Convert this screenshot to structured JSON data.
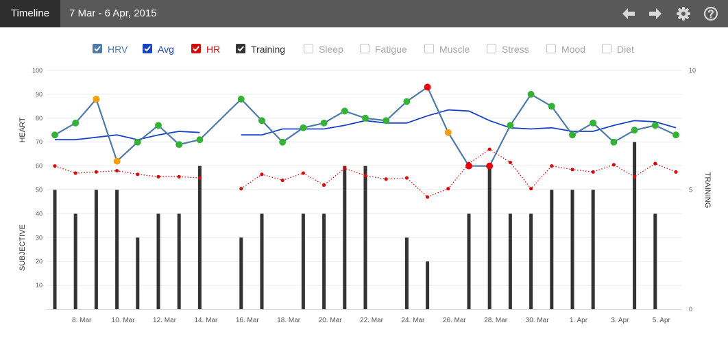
{
  "header": {
    "title": "Timeline",
    "date_range": "7 Mar - 6 Apr, 2015"
  },
  "toolbar": {
    "icons": [
      "arrow-left-icon",
      "arrow-right-icon",
      "gear-icon",
      "help-icon"
    ]
  },
  "legend": [
    {
      "label": "HRV",
      "checked": true,
      "color": "#4e7aa8"
    },
    {
      "label": "Avg",
      "checked": true,
      "color": "#1842c4"
    },
    {
      "label": "HR",
      "checked": true,
      "color": "#d40c0c"
    },
    {
      "label": "Training",
      "checked": true,
      "color": "#333333"
    },
    {
      "label": "Sleep",
      "checked": false,
      "color": "#a6a6a6"
    },
    {
      "label": "Fatigue",
      "checked": false,
      "color": "#a6a6a6"
    },
    {
      "label": "Muscle",
      "checked": false,
      "color": "#a6a6a6"
    },
    {
      "label": "Stress",
      "checked": false,
      "color": "#a6a6a6"
    },
    {
      "label": "Mood",
      "checked": false,
      "color": "#a6a6a6"
    },
    {
      "label": "Diet",
      "checked": false,
      "color": "#a6a6a6"
    }
  ],
  "chart_data": {
    "type": "line",
    "days": [
      "7 Mar",
      "8 Mar",
      "9 Mar",
      "10 Mar",
      "11 Mar",
      "12 Mar",
      "13 Mar",
      "14 Mar",
      "15 Mar",
      "16 Mar",
      "17 Mar",
      "18 Mar",
      "19 Mar",
      "20 Mar",
      "21 Mar",
      "22 Mar",
      "23 Mar",
      "24 Mar",
      "25 Mar",
      "26 Mar",
      "27 Mar",
      "28 Mar",
      "29 Mar",
      "30 Mar",
      "31 Mar",
      "1 Apr",
      "2 Apr",
      "3 Apr",
      "4 Apr",
      "5 Apr",
      "6 Apr"
    ],
    "x_tick_labels": [
      "8. Mar",
      "10. Mar",
      "12. Mar",
      "14. Mar",
      "16. Mar",
      "18. Mar",
      "20. Mar",
      "22. Mar",
      "24. Mar",
      "26. Mar",
      "28. Mar",
      "30. Mar",
      "1. Apr",
      "3. Apr",
      "5. Apr"
    ],
    "left_axis": {
      "ylim": [
        0,
        100
      ],
      "ticks": [
        "10",
        "20",
        "30",
        "40",
        "50",
        "60",
        "70",
        "80",
        "90",
        "100"
      ],
      "label_top": "HEART",
      "label_bottom": "SUBJECTIVE"
    },
    "right_axis": {
      "ylim": [
        0,
        10
      ],
      "ticks": [
        "0",
        "5",
        "10"
      ],
      "label": "TRAINING"
    },
    "grid": true,
    "series": [
      {
        "name": "HRV",
        "type": "line",
        "color": "#4e7aa8",
        "values": [
          73,
          78,
          88,
          62,
          70,
          77,
          69,
          71,
          null,
          88,
          79,
          70,
          76,
          78,
          83,
          80,
          79,
          87,
          93,
          74,
          60,
          60,
          77,
          90,
          85,
          73,
          78,
          70,
          75,
          77,
          73
        ],
        "point_colors": [
          "#36b336",
          "#36b336",
          "#f5a010",
          "#f5a010",
          "#36b336",
          "#36b336",
          "#36b336",
          "#36b336",
          null,
          "#36b336",
          "#36b336",
          "#36b336",
          "#36b336",
          "#36b336",
          "#36b336",
          "#36b336",
          "#36b336",
          "#36b336",
          "#e8000b",
          "#f5a010",
          "#e8000b",
          "#e8000b",
          "#36b336",
          "#36b336",
          "#36b336",
          "#36b336",
          "#36b336",
          "#36b336",
          "#36b336",
          "#36b336",
          "#36b336"
        ]
      },
      {
        "name": "Avg",
        "type": "line",
        "color": "#1842c4",
        "values": [
          71,
          71,
          72,
          73,
          71,
          73,
          74.5,
          74,
          null,
          73,
          73,
          75.5,
          75.5,
          75.5,
          77,
          79,
          78,
          78,
          81,
          83.5,
          83,
          79,
          76,
          75.5,
          76,
          74.5,
          74.5,
          77,
          79,
          78.5,
          76
        ]
      },
      {
        "name": "HR",
        "type": "dotted-line",
        "color": "#d40c0c",
        "values": [
          60,
          57,
          57.5,
          58,
          56.5,
          55.5,
          55.5,
          55,
          null,
          50.5,
          56.5,
          54,
          57,
          52,
          59,
          56,
          54.5,
          55,
          47,
          50.5,
          61,
          67,
          61.5,
          50.5,
          60,
          58.5,
          57.5,
          60.5,
          55.5,
          61,
          57.5
        ]
      },
      {
        "name": "Training",
        "type": "bar",
        "axis": "right",
        "color": "#333333",
        "values": [
          5,
          4,
          5,
          5,
          3,
          4,
          4,
          6,
          0,
          3,
          4,
          0,
          4,
          4,
          6,
          6,
          0,
          3,
          2,
          0,
          4,
          6,
          4,
          4,
          5,
          5,
          5,
          0,
          7,
          4,
          0
        ]
      }
    ]
  }
}
